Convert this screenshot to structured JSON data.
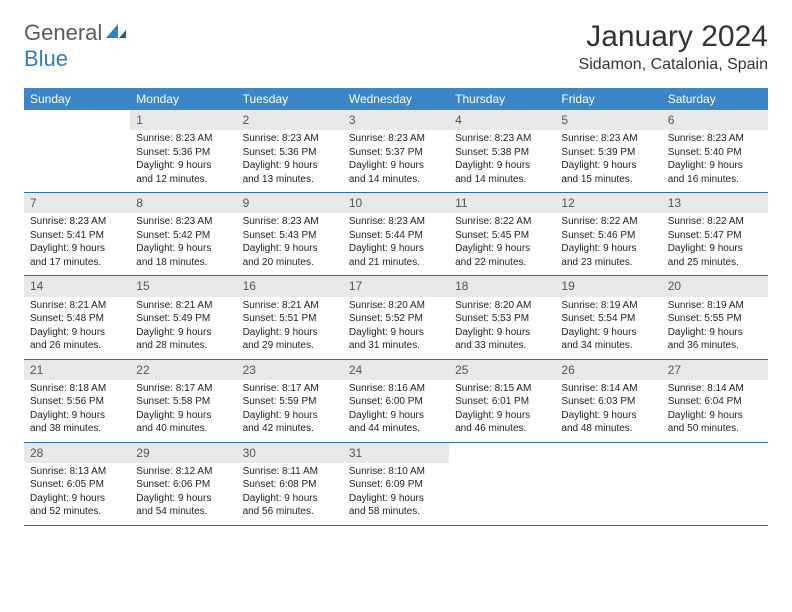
{
  "logo": {
    "general": "General",
    "blue": "Blue"
  },
  "title": "January 2024",
  "location": "Sidamon, Catalonia, Spain",
  "colors": {
    "header_bg": "#3b86c6",
    "header_text": "#ffffff",
    "daynum_bg": "#e8e8e8",
    "border": "#2f6fa8",
    "logo_blue": "#2f7ec0"
  },
  "weekdays": [
    "Sunday",
    "Monday",
    "Tuesday",
    "Wednesday",
    "Thursday",
    "Friday",
    "Saturday"
  ],
  "weeks": [
    [
      {
        "n": "",
        "lines": [
          "",
          "",
          "",
          ""
        ]
      },
      {
        "n": "1",
        "lines": [
          "Sunrise: 8:23 AM",
          "Sunset: 5:36 PM",
          "Daylight: 9 hours",
          "and 12 minutes."
        ]
      },
      {
        "n": "2",
        "lines": [
          "Sunrise: 8:23 AM",
          "Sunset: 5:36 PM",
          "Daylight: 9 hours",
          "and 13 minutes."
        ]
      },
      {
        "n": "3",
        "lines": [
          "Sunrise: 8:23 AM",
          "Sunset: 5:37 PM",
          "Daylight: 9 hours",
          "and 14 minutes."
        ]
      },
      {
        "n": "4",
        "lines": [
          "Sunrise: 8:23 AM",
          "Sunset: 5:38 PM",
          "Daylight: 9 hours",
          "and 14 minutes."
        ]
      },
      {
        "n": "5",
        "lines": [
          "Sunrise: 8:23 AM",
          "Sunset: 5:39 PM",
          "Daylight: 9 hours",
          "and 15 minutes."
        ]
      },
      {
        "n": "6",
        "lines": [
          "Sunrise: 8:23 AM",
          "Sunset: 5:40 PM",
          "Daylight: 9 hours",
          "and 16 minutes."
        ]
      }
    ],
    [
      {
        "n": "7",
        "lines": [
          "Sunrise: 8:23 AM",
          "Sunset: 5:41 PM",
          "Daylight: 9 hours",
          "and 17 minutes."
        ]
      },
      {
        "n": "8",
        "lines": [
          "Sunrise: 8:23 AM",
          "Sunset: 5:42 PM",
          "Daylight: 9 hours",
          "and 18 minutes."
        ]
      },
      {
        "n": "9",
        "lines": [
          "Sunrise: 8:23 AM",
          "Sunset: 5:43 PM",
          "Daylight: 9 hours",
          "and 20 minutes."
        ]
      },
      {
        "n": "10",
        "lines": [
          "Sunrise: 8:23 AM",
          "Sunset: 5:44 PM",
          "Daylight: 9 hours",
          "and 21 minutes."
        ]
      },
      {
        "n": "11",
        "lines": [
          "Sunrise: 8:22 AM",
          "Sunset: 5:45 PM",
          "Daylight: 9 hours",
          "and 22 minutes."
        ]
      },
      {
        "n": "12",
        "lines": [
          "Sunrise: 8:22 AM",
          "Sunset: 5:46 PM",
          "Daylight: 9 hours",
          "and 23 minutes."
        ]
      },
      {
        "n": "13",
        "lines": [
          "Sunrise: 8:22 AM",
          "Sunset: 5:47 PM",
          "Daylight: 9 hours",
          "and 25 minutes."
        ]
      }
    ],
    [
      {
        "n": "14",
        "lines": [
          "Sunrise: 8:21 AM",
          "Sunset: 5:48 PM",
          "Daylight: 9 hours",
          "and 26 minutes."
        ]
      },
      {
        "n": "15",
        "lines": [
          "Sunrise: 8:21 AM",
          "Sunset: 5:49 PM",
          "Daylight: 9 hours",
          "and 28 minutes."
        ]
      },
      {
        "n": "16",
        "lines": [
          "Sunrise: 8:21 AM",
          "Sunset: 5:51 PM",
          "Daylight: 9 hours",
          "and 29 minutes."
        ]
      },
      {
        "n": "17",
        "lines": [
          "Sunrise: 8:20 AM",
          "Sunset: 5:52 PM",
          "Daylight: 9 hours",
          "and 31 minutes."
        ]
      },
      {
        "n": "18",
        "lines": [
          "Sunrise: 8:20 AM",
          "Sunset: 5:53 PM",
          "Daylight: 9 hours",
          "and 33 minutes."
        ]
      },
      {
        "n": "19",
        "lines": [
          "Sunrise: 8:19 AM",
          "Sunset: 5:54 PM",
          "Daylight: 9 hours",
          "and 34 minutes."
        ]
      },
      {
        "n": "20",
        "lines": [
          "Sunrise: 8:19 AM",
          "Sunset: 5:55 PM",
          "Daylight: 9 hours",
          "and 36 minutes."
        ]
      }
    ],
    [
      {
        "n": "21",
        "lines": [
          "Sunrise: 8:18 AM",
          "Sunset: 5:56 PM",
          "Daylight: 9 hours",
          "and 38 minutes."
        ]
      },
      {
        "n": "22",
        "lines": [
          "Sunrise: 8:17 AM",
          "Sunset: 5:58 PM",
          "Daylight: 9 hours",
          "and 40 minutes."
        ]
      },
      {
        "n": "23",
        "lines": [
          "Sunrise: 8:17 AM",
          "Sunset: 5:59 PM",
          "Daylight: 9 hours",
          "and 42 minutes."
        ]
      },
      {
        "n": "24",
        "lines": [
          "Sunrise: 8:16 AM",
          "Sunset: 6:00 PM",
          "Daylight: 9 hours",
          "and 44 minutes."
        ]
      },
      {
        "n": "25",
        "lines": [
          "Sunrise: 8:15 AM",
          "Sunset: 6:01 PM",
          "Daylight: 9 hours",
          "and 46 minutes."
        ]
      },
      {
        "n": "26",
        "lines": [
          "Sunrise: 8:14 AM",
          "Sunset: 6:03 PM",
          "Daylight: 9 hours",
          "and 48 minutes."
        ]
      },
      {
        "n": "27",
        "lines": [
          "Sunrise: 8:14 AM",
          "Sunset: 6:04 PM",
          "Daylight: 9 hours",
          "and 50 minutes."
        ]
      }
    ],
    [
      {
        "n": "28",
        "lines": [
          "Sunrise: 8:13 AM",
          "Sunset: 6:05 PM",
          "Daylight: 9 hours",
          "and 52 minutes."
        ]
      },
      {
        "n": "29",
        "lines": [
          "Sunrise: 8:12 AM",
          "Sunset: 6:06 PM",
          "Daylight: 9 hours",
          "and 54 minutes."
        ]
      },
      {
        "n": "30",
        "lines": [
          "Sunrise: 8:11 AM",
          "Sunset: 6:08 PM",
          "Daylight: 9 hours",
          "and 56 minutes."
        ]
      },
      {
        "n": "31",
        "lines": [
          "Sunrise: 8:10 AM",
          "Sunset: 6:09 PM",
          "Daylight: 9 hours",
          "and 58 minutes."
        ]
      },
      {
        "n": "",
        "lines": [
          "",
          "",
          "",
          ""
        ]
      },
      {
        "n": "",
        "lines": [
          "",
          "",
          "",
          ""
        ]
      },
      {
        "n": "",
        "lines": [
          "",
          "",
          "",
          ""
        ]
      }
    ]
  ]
}
